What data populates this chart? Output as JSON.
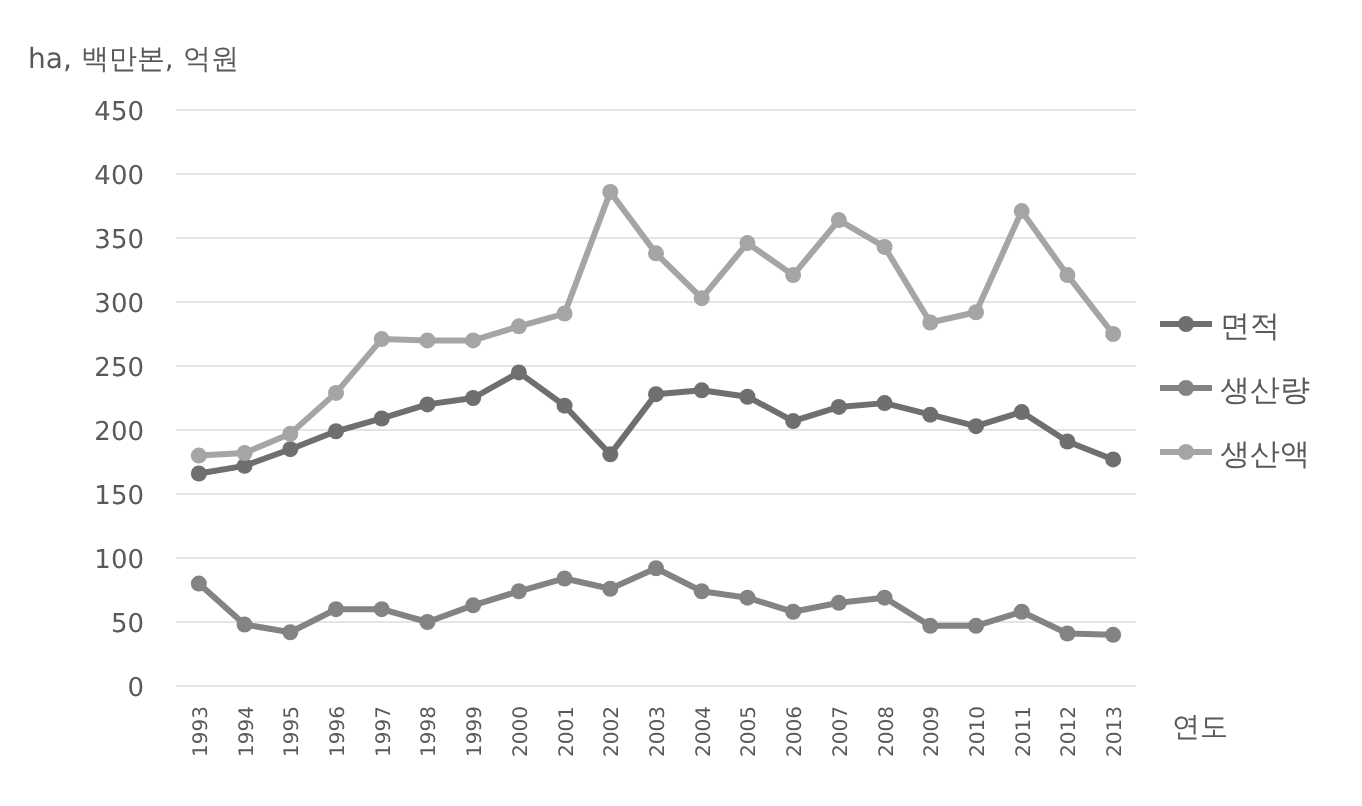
{
  "chart_data": {
    "type": "line",
    "ylabel": "ha, 백만본, 억원",
    "xlabel": "연도",
    "categories": [
      "1993",
      "1994",
      "1995",
      "1996",
      "1997",
      "1998",
      "1999",
      "2000",
      "2001",
      "2002",
      "2003",
      "2004",
      "2005",
      "2006",
      "2007",
      "2008",
      "2009",
      "2010",
      "2011",
      "2012",
      "2013"
    ],
    "series": [
      {
        "name": "면적",
        "color": "#6f6f6f",
        "values": [
          166,
          172,
          185,
          199,
          209,
          220,
          225,
          245,
          219,
          181,
          228,
          231,
          226,
          207,
          218,
          221,
          212,
          203,
          214,
          191,
          177
        ]
      },
      {
        "name": "생산량",
        "color": "#838383",
        "values": [
          80,
          48,
          42,
          60,
          60,
          50,
          63,
          74,
          84,
          76,
          92,
          74,
          69,
          58,
          65,
          69,
          47,
          47,
          58,
          41,
          40
        ]
      },
      {
        "name": "생산액",
        "color": "#a5a5a5",
        "values": [
          180,
          182,
          197,
          229,
          271,
          270,
          270,
          281,
          291,
          386,
          338,
          303,
          346,
          321,
          364,
          343,
          284,
          292,
          371,
          321,
          275
        ]
      }
    ],
    "ylim": [
      0,
      450
    ],
    "yticks": [
      0,
      50,
      100,
      150,
      200,
      250,
      300,
      350,
      400,
      450
    ],
    "grid": "y",
    "legend": "right",
    "marker": "circle",
    "line_style": "solid"
  }
}
